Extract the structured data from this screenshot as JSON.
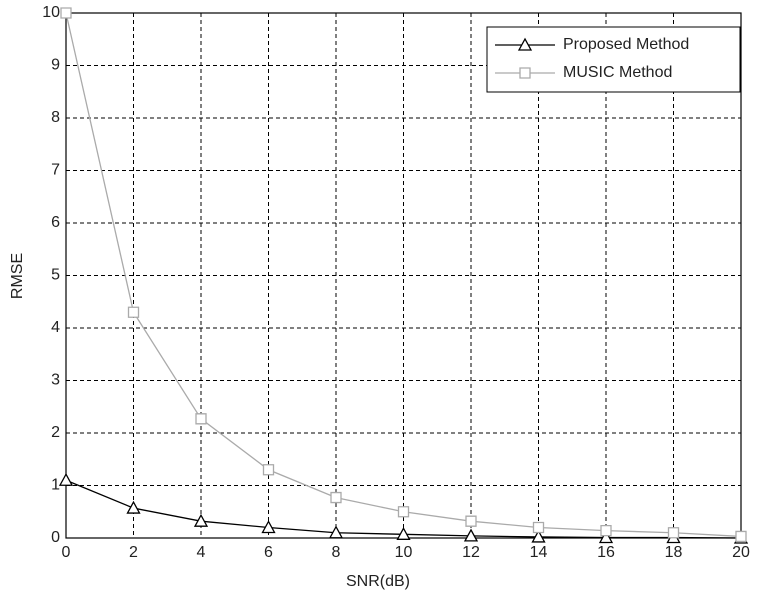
{
  "chart_data": {
    "type": "line",
    "x_label": "SNR(dB)",
    "y_label": "RMSE",
    "x": [
      0,
      2,
      4,
      6,
      8,
      10,
      12,
      14,
      16,
      18,
      20
    ],
    "series": [
      {
        "name": "Proposed Method",
        "color": "#000000",
        "marker": "triangle",
        "values": [
          1.1,
          0.57,
          0.32,
          0.2,
          0.1,
          0.07,
          0.04,
          0.02,
          0.01,
          0.01,
          0.0
        ]
      },
      {
        "name": "MUSIC Method",
        "color": "#aaaaaa",
        "marker": "square",
        "values": [
          10,
          4.3,
          2.27,
          1.3,
          0.77,
          0.5,
          0.32,
          0.2,
          0.14,
          0.1,
          0.03
        ]
      }
    ],
    "xlim": [
      0,
      20
    ],
    "xticks": [
      0,
      2,
      4,
      6,
      8,
      10,
      12,
      14,
      16,
      18,
      20
    ],
    "ylim": [
      0,
      10
    ],
    "yticks": [
      0,
      1,
      2,
      3,
      4,
      5,
      6,
      7,
      8,
      9,
      10
    ],
    "grid": true,
    "legend": "upper-right"
  }
}
